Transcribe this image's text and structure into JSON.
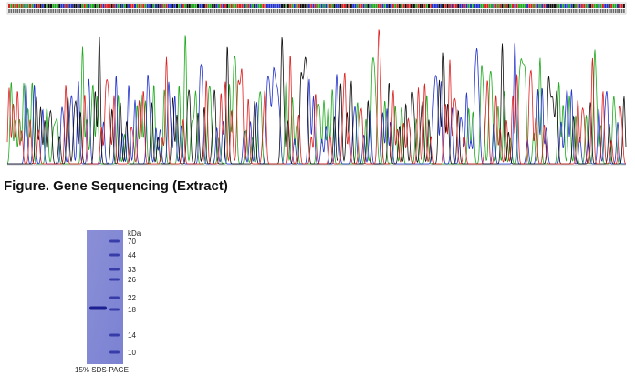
{
  "figure": {
    "caption": "Figure. Gene Sequencing (Extract)"
  },
  "gel": {
    "unit": "kDa",
    "markers": [
      70,
      44,
      33,
      26,
      22,
      18,
      14,
      10
    ],
    "caption": "15% SDS-PAGE"
  }
}
